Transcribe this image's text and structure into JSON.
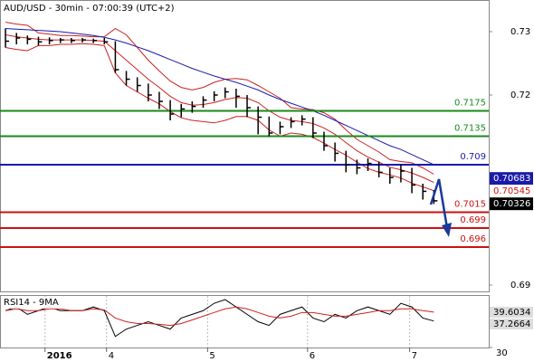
{
  "chart_data": [
    {
      "type": "ohlc",
      "title": "AUD/USD - 30min - 07:00:39 (UTC+2)",
      "x": [
        0,
        1,
        2,
        3,
        4,
        5,
        6,
        7,
        8,
        9,
        10,
        11,
        12,
        13,
        14,
        15,
        16,
        17,
        18,
        19,
        20,
        21,
        22,
        23,
        24,
        25,
        26,
        27,
        28,
        29,
        30,
        31,
        32,
        33,
        34,
        35,
        36,
        37,
        38,
        39
      ],
      "high": [
        0.7305,
        0.7298,
        0.7294,
        0.7292,
        0.7291,
        0.729,
        0.729,
        0.729,
        0.7289,
        0.729,
        0.7285,
        0.7238,
        0.7228,
        0.7218,
        0.7205,
        0.7192,
        0.7186,
        0.719,
        0.7198,
        0.7206,
        0.7212,
        0.721,
        0.72,
        0.7182,
        0.7166,
        0.7158,
        0.7165,
        0.7168,
        0.7165,
        0.7142,
        0.7125,
        0.7112,
        0.7098,
        0.71,
        0.7095,
        0.7085,
        0.709,
        0.7085,
        0.706,
        0.705
      ],
      "low": [
        0.7275,
        0.728,
        0.728,
        0.7278,
        0.728,
        0.7282,
        0.7282,
        0.7283,
        0.7282,
        0.728,
        0.7235,
        0.7215,
        0.7205,
        0.719,
        0.7178,
        0.716,
        0.7165,
        0.7172,
        0.718,
        0.719,
        0.7195,
        0.718,
        0.7165,
        0.7138,
        0.7135,
        0.7138,
        0.7148,
        0.7152,
        0.7132,
        0.7112,
        0.7095,
        0.7078,
        0.7075,
        0.708,
        0.707,
        0.706,
        0.7062,
        0.7045,
        0.7035,
        0.7028
      ],
      "close": [
        0.7285,
        0.729,
        0.7288,
        0.7284,
        0.7286,
        0.7287,
        0.7286,
        0.7287,
        0.7286,
        0.7284,
        0.724,
        0.7225,
        0.7215,
        0.72,
        0.719,
        0.717,
        0.7178,
        0.7182,
        0.7192,
        0.72,
        0.7205,
        0.7198,
        0.718,
        0.7165,
        0.714,
        0.715,
        0.7158,
        0.7162,
        0.714,
        0.712,
        0.7108,
        0.709,
        0.7085,
        0.7092,
        0.7078,
        0.707,
        0.708,
        0.7058,
        0.7048,
        0.7033
      ],
      "bar_color": "#000000",
      "overlays": [
        {
          "color": "#cc2222",
          "values": [
            0.7315,
            0.7312,
            0.731,
            0.7298,
            0.7296,
            0.7294,
            0.7294,
            0.7293,
            0.7292,
            0.7292,
            0.7305,
            0.7295,
            0.7275,
            0.7255,
            0.7238,
            0.7222,
            0.7212,
            0.7208,
            0.7212,
            0.722,
            0.7225,
            0.7226,
            0.7224,
            0.7215,
            0.7205,
            0.7195,
            0.718,
            0.7178,
            0.7177,
            0.7172,
            0.7162,
            0.7145,
            0.713,
            0.712,
            0.711,
            0.7098,
            0.7095,
            0.7093,
            0.7085,
            0.7075
          ]
        },
        {
          "color": "#cc2222",
          "values": [
            0.7295,
            0.7292,
            0.729,
            0.7288,
            0.7287,
            0.7287,
            0.7287,
            0.7287,
            0.7286,
            0.7285,
            0.727,
            0.7255,
            0.724,
            0.7225,
            0.7212,
            0.7198,
            0.7188,
            0.7184,
            0.7185,
            0.7188,
            0.7193,
            0.7196,
            0.7195,
            0.7188,
            0.7175,
            0.7165,
            0.716,
            0.7158,
            0.7155,
            0.7148,
            0.7138,
            0.7125,
            0.7112,
            0.7102,
            0.7094,
            0.7086,
            0.7082,
            0.7077,
            0.707,
            0.7062
          ]
        },
        {
          "color": "#cc2222",
          "values": [
            0.7275,
            0.7272,
            0.727,
            0.7278,
            0.7278,
            0.728,
            0.728,
            0.7281,
            0.728,
            0.7278,
            0.7235,
            0.7215,
            0.7205,
            0.7195,
            0.7186,
            0.7174,
            0.7164,
            0.716,
            0.7158,
            0.7156,
            0.716,
            0.7166,
            0.7166,
            0.716,
            0.7145,
            0.7135,
            0.714,
            0.7138,
            0.7133,
            0.7124,
            0.7114,
            0.7105,
            0.7094,
            0.7084,
            0.7078,
            0.7074,
            0.7069,
            0.7061,
            0.7055,
            0.7049
          ]
        },
        {
          "color": "#1a1aaa",
          "values": [
            0.7305,
            0.7304,
            0.7303,
            0.7302,
            0.7301,
            0.73,
            0.7298,
            0.7296,
            0.7294,
            0.7291,
            0.7287,
            0.7282,
            0.7276,
            0.727,
            0.7263,
            0.7256,
            0.7249,
            0.7242,
            0.7236,
            0.723,
            0.7225,
            0.722,
            0.7214,
            0.7208,
            0.72,
            0.7193,
            0.7187,
            0.7181,
            0.7175,
            0.7168,
            0.716,
            0.7152,
            0.7144,
            0.7136,
            0.7128,
            0.712,
            0.7114,
            0.7106,
            0.7098,
            0.709
          ]
        }
      ],
      "levels": [
        {
          "value": 0.7175,
          "color": "#1a8a1a"
        },
        {
          "value": 0.7135,
          "color": "#1a8a1a"
        },
        {
          "value": 0.709,
          "color": "#1a1aaa"
        },
        {
          "value": 0.7015,
          "color": "#cc1111"
        },
        {
          "value": 0.699,
          "color": "#cc1111"
        },
        {
          "value": 0.696,
          "color": "#cc1111"
        }
      ],
      "price_markers": [
        {
          "value": 0.70683,
          "color": "#1a1aaa"
        },
        {
          "value": 0.70545,
          "color": "#cc1111"
        },
        {
          "value": 0.70326,
          "color": "#000000"
        }
      ],
      "xlim": [
        -0.5,
        44
      ],
      "xticks": [
        {
          "value": 3.6,
          "label": "2016"
        },
        {
          "value": 9.2,
          "label": "4"
        },
        {
          "value": 18.4,
          "label": "5"
        },
        {
          "value": 27.5,
          "label": "6"
        },
        {
          "value": 36.8,
          "label": "7"
        }
      ],
      "ylim": [
        0.689,
        0.735
      ],
      "yticks": [
        0.73,
        0.72,
        0.69
      ]
    },
    {
      "type": "line",
      "title": "RSI14 - 9MA",
      "series": [
        {
          "color": "#000000",
          "values": [
            40,
            41,
            39,
            40,
            41,
            40,
            40,
            40,
            41,
            40,
            33,
            35,
            36,
            37,
            36,
            35,
            38,
            39,
            40,
            42,
            43,
            41,
            39,
            37,
            36,
            39,
            40,
            41,
            38,
            37,
            39,
            38,
            40,
            41,
            40,
            39,
            42,
            41,
            38,
            37.2
          ]
        },
        {
          "color": "#cc2222",
          "values": [
            40,
            40.5,
            40,
            40,
            40.5,
            40.5,
            40,
            40,
            40.5,
            40.2,
            38,
            37,
            36.5,
            36.5,
            36.3,
            36,
            36.5,
            37.5,
            38.5,
            39.5,
            40.5,
            41,
            40.5,
            39.5,
            38.5,
            38,
            38.5,
            39.5,
            39.5,
            39,
            38.5,
            38.5,
            39,
            39.5,
            40,
            40,
            40.5,
            40.5,
            40,
            39.6
          ]
        }
      ],
      "markers": [
        {
          "value": 39.6034,
          "color": "#dddddd"
        },
        {
          "value": 37.2664,
          "color": "#dddddd"
        }
      ],
      "ylim": [
        30,
        44
      ],
      "yticks": [
        30
      ]
    }
  ]
}
